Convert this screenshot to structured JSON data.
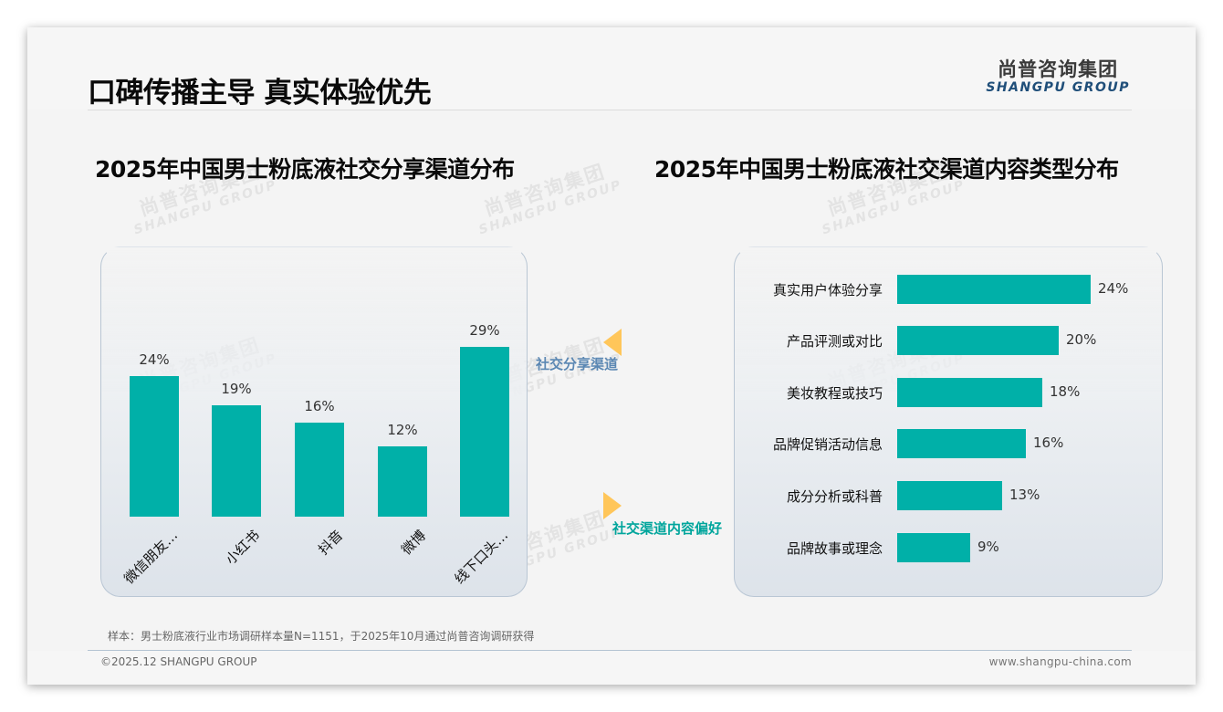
{
  "page": {
    "title": "口碑传播主导 真实体验优先",
    "logo": {
      "cn": "尚普咨询集团",
      "en": "SHANGPU GROUP"
    },
    "watermark": {
      "cn": "尚普咨询集团",
      "en": "SHANGPU GROUP"
    },
    "footnote": "样本：男士粉底液行业市场调研样本量N=1151，于2025年10月通过尚普咨询调研获得",
    "copyright": "©2025.12 SHANGPU GROUP",
    "website": "www.shangpu-china.com"
  },
  "connectors": {
    "left_label": "社交分享渠道",
    "right_label": "社交渠道内容偏好",
    "left_label_color": "#5b87b3",
    "right_label_color": "#00a59c",
    "arrow_color": "#ffc65a"
  },
  "colors": {
    "bar": "#00b0a8",
    "title": "#0a0a0a",
    "panel_border": "#b9c6d4"
  },
  "chart_data": [
    {
      "type": "bar",
      "orientation": "vertical",
      "title": "2025年中国男士粉底液社交分享渠道分布",
      "categories": [
        "微信朋友…",
        "小红书",
        "抖音",
        "微博",
        "线下口头…"
      ],
      "values": [
        24,
        19,
        16,
        12,
        29
      ],
      "value_labels": [
        "24%",
        "19%",
        "16%",
        "12%",
        "29%"
      ],
      "xlabel": "",
      "ylabel": "",
      "unit": "%",
      "grid": false,
      "legend": null
    },
    {
      "type": "bar",
      "orientation": "horizontal",
      "title": "2025年中国男士粉底液社交渠道内容类型分布",
      "categories": [
        "真实用户体验分享",
        "产品评测或对比",
        "美妆教程或技巧",
        "品牌促销活动信息",
        "成分分析或科普",
        "品牌故事或理念"
      ],
      "values": [
        24,
        20,
        18,
        16,
        13,
        9
      ],
      "value_labels": [
        "24%",
        "20%",
        "18%",
        "16%",
        "13%",
        "9%"
      ],
      "xlabel": "",
      "ylabel": "",
      "unit": "%",
      "grid": false,
      "legend": null
    }
  ]
}
